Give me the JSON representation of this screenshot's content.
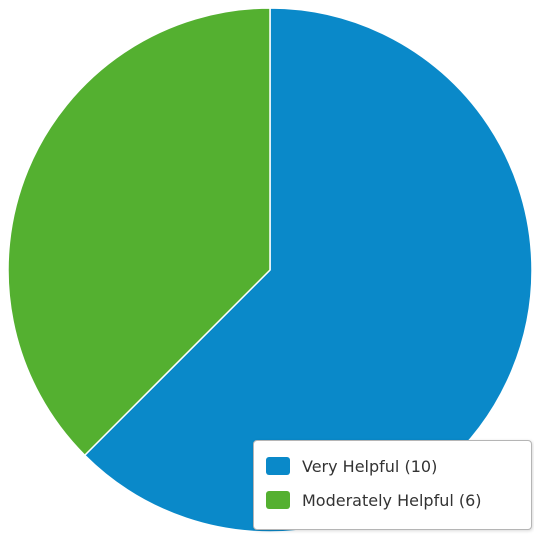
{
  "chart_data": {
    "type": "pie",
    "title": "",
    "slices": [
      {
        "label": "Very Helpful",
        "value": 10,
        "color": "#0a89c9"
      },
      {
        "label": "Moderately Helpful",
        "value": 6,
        "color": "#54b030"
      }
    ],
    "legend": {
      "placement": "bottom-right",
      "items": [
        {
          "text": "Very Helpful (10)",
          "color": "#0a89c9"
        },
        {
          "text": "Moderately Helpful (6)",
          "color": "#54b030"
        }
      ]
    }
  }
}
